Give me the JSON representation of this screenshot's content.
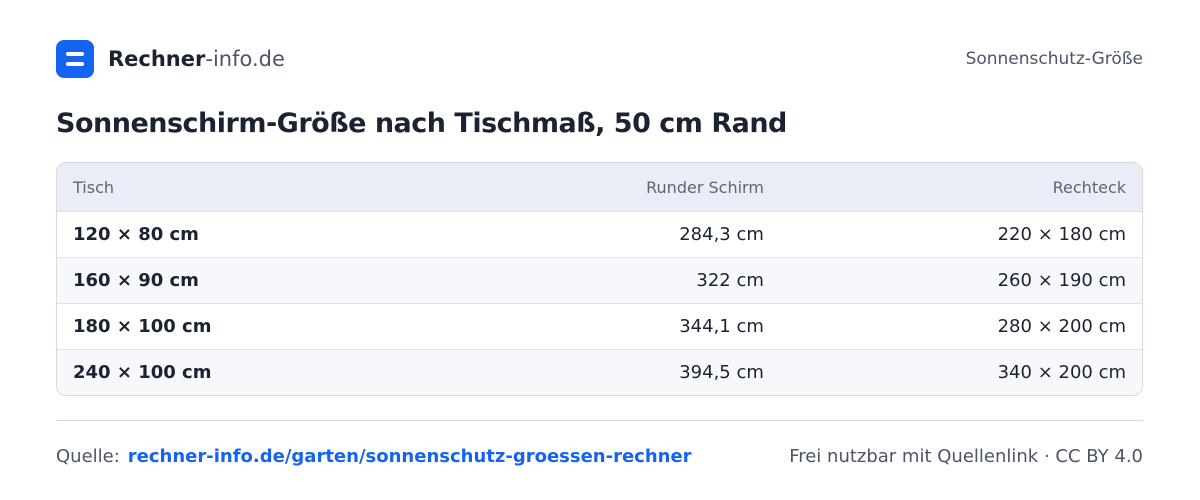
{
  "header": {
    "brand_bold": "Rechner",
    "brand_light": "-info.de",
    "topic": "Sonnenschutz-Größe"
  },
  "title": "Sonnenschirm-Größe nach Tischmaß, 50 cm Rand",
  "table": {
    "columns": [
      "Tisch",
      "Runder Schirm",
      "Rechteck"
    ],
    "rows": [
      [
        "120 × 80 cm",
        "284,3 cm",
        "220 × 180 cm"
      ],
      [
        "160 × 90 cm",
        "322 cm",
        "260 × 190 cm"
      ],
      [
        "180 × 100 cm",
        "344,1 cm",
        "280 × 200 cm"
      ],
      [
        "240 × 100 cm",
        "394,5 cm",
        "340 × 200 cm"
      ]
    ]
  },
  "footer": {
    "source_label": "Quelle:",
    "source_link": "rechner-info.de/garten/sonnenschutz-groessen-rechner",
    "license_text": "Frei nutzbar mit Quellenlink",
    "separator": "·",
    "license": "CC BY 4.0"
  }
}
